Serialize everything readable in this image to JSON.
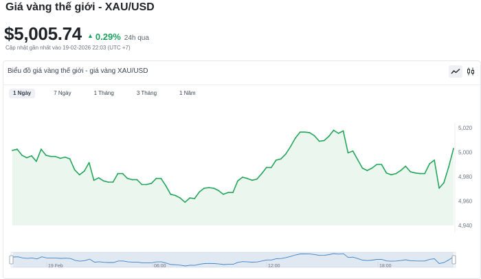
{
  "header": {
    "title": "Giá vàng thế giới - XAU/USD",
    "price": "$5,005.74",
    "change": "0.29%",
    "change_period": "24h qua",
    "updated": "Cập nhật gần nhất vào 19-02-2026 22:03 (UTC +7)"
  },
  "chart_panel": {
    "title": "Biểu đồ giá vàng thế giới - giá vàng XAU/USD",
    "tabs": [
      {
        "label": "1 Ngày",
        "active": true
      },
      {
        "label": "7 Ngày",
        "active": false
      },
      {
        "label": "1 Tháng",
        "active": false
      },
      {
        "label": "3 Tháng",
        "active": false
      },
      {
        "label": "1 Năm",
        "active": false
      }
    ],
    "icons": [
      "line-chart-icon",
      "candlestick-chart-icon"
    ]
  },
  "colors": {
    "line": "#22a55a",
    "area": "#eaf6ee",
    "up": "#1aa15c",
    "navigator": "#3b82c4"
  },
  "chart_data": {
    "type": "area",
    "yaxis_ticks": [
      "5,020",
      "5,000",
      "4,980",
      "4,960",
      "4,940"
    ],
    "ylim": [
      4940,
      5020
    ],
    "values": [
      5001.5,
      5002.5,
      4997.5,
      4995.5,
      4997,
      4992.5,
      5002.5,
      4997.5,
      4996.5,
      4996.5,
      4995,
      4996,
      4994.5,
      4985.5,
      4981.5,
      4984.5,
      4991.5,
      4977,
      4979,
      4976.5,
      4975.5,
      4975.5,
      4982.5,
      4982.5,
      4978.5,
      4977.5,
      4977.5,
      4973.5,
      4973.5,
      4974.5,
      4978.5,
      4978.5,
      4972.5,
      4965.5,
      4964.5,
      4962.5,
      4959,
      4962.5,
      4962,
      4967.5,
      4970.5,
      4971,
      4970.5,
      4968.5,
      4965.5,
      4967,
      4967,
      4976.5,
      4979.5,
      4978.5,
      4977,
      4978,
      4982.5,
      4987.5,
      4987.5,
      4993.5,
      4994.5,
      4998.5,
      5004.5,
      5011.5,
      5016.5,
      5016.5,
      5016,
      5013.5,
      5009,
      5009.5,
      5013,
      5018,
      5015.5,
      5017.5,
      4999.5,
      5001,
      4994,
      4987,
      4985,
      4987,
      4990,
      4990,
      4983,
      4981.5,
      4982.5,
      4985,
      4988.5,
      4984,
      4983,
      4982.5,
      4982.5,
      4990.5,
      4993.5,
      4970.5,
      4975,
      4988,
      5003
    ]
  },
  "navigator": {
    "labels": [
      "19 Feb",
      "06:00",
      "12:00",
      "18:00"
    ]
  }
}
